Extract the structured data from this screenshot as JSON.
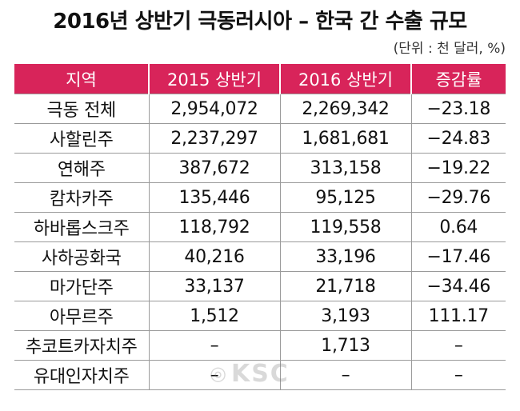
{
  "title": "2016년 상반기 극동러시아 – 한국 간 수출 규모",
  "unit": "(단위 : 천 달러, %)",
  "table": {
    "headers": [
      "지역",
      "2015 상반기",
      "2016 상반기",
      "증감률"
    ],
    "rows": [
      [
        "극동 전체",
        "2,954,072",
        "2,269,342",
        "−23.18"
      ],
      [
        "사할린주",
        "2,237,297",
        "1,681,681",
        "−24.83"
      ],
      [
        "연해주",
        "387,672",
        "313,158",
        "−19.22"
      ],
      [
        "캄차카주",
        "135,446",
        "95,125",
        "−29.76"
      ],
      [
        "하바롭스크주",
        "118,792",
        "119,558",
        "0.64"
      ],
      [
        "사하공화국",
        "40,216",
        "33,196",
        "−17.46"
      ],
      [
        "마가단주",
        "33,137",
        "21,718",
        "−34.46"
      ],
      [
        "아무르주",
        "1,512",
        "3,193",
        "111.17"
      ],
      [
        "추코트카자치주",
        "–",
        "1,713",
        "–"
      ],
      [
        "유대인자치주",
        "–",
        "–",
        "–"
      ]
    ]
  },
  "watermark": {
    "text": "KSC",
    "icon": "globe-icon"
  },
  "colors": {
    "header_bg": "#d8245a",
    "header_text": "#ffffff",
    "grid_line": "#9a9a9a"
  }
}
